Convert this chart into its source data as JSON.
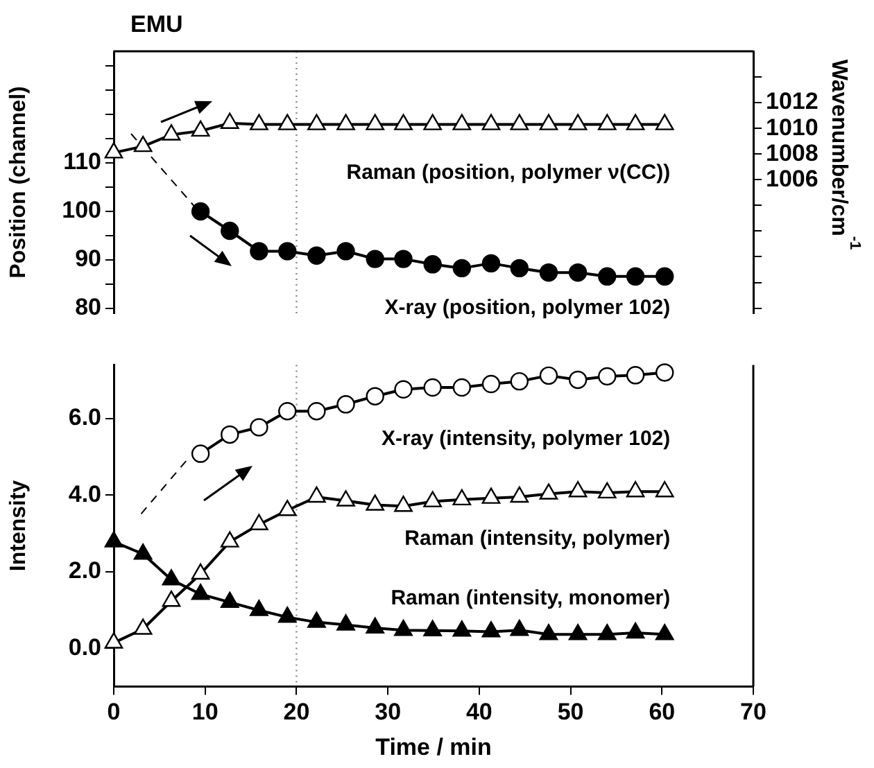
{
  "chart_data": [
    {
      "type": "line",
      "title": "EMU",
      "ylabel": "Position (channel)",
      "y2label": "Wavenumber/cm$^{-1}$",
      "x": [
        0,
        3.2,
        6.3,
        9.5,
        12.7,
        15.9,
        19.0,
        22.2,
        25.4,
        28.6,
        31.7,
        34.9,
        38.1,
        41.3,
        44.4,
        47.6,
        50.8,
        54.0,
        57.1,
        60.3
      ],
      "xlim": [
        0,
        70
      ],
      "ylim": [
        79,
        133
      ],
      "yticks": [
        80,
        {
          "value": 85,
          "label": null
        },
        90,
        {
          "value": 95,
          "label": null
        },
        100,
        {
          "value": 105,
          "label": null
        },
        110,
        {
          "value": 115,
          "label": null
        },
        {
          "value": 120,
          "label": null
        },
        {
          "value": 125,
          "label": null
        },
        {
          "value": 130,
          "label": null
        }
      ],
      "y2lim": [
        995.6,
        1016
      ],
      "y2ticks": [
        {
          "value": 996,
          "label": null
        },
        {
          "value": 998,
          "label": null
        },
        {
          "value": 1000,
          "label": null
        },
        {
          "value": 1002,
          "label": null
        },
        {
          "value": 1004,
          "label": null
        },
        1006,
        1008,
        1010,
        1012,
        {
          "value": 1014,
          "label": null
        }
      ],
      "tick_labels": "y",
      "legend": false,
      "grid": false,
      "ref_lines": [
        {
          "axis": "x",
          "value": 20,
          "color": "#888888",
          "line_style": "dotted"
        }
      ],
      "series": [
        {
          "name": "Raman (position, polymer ν(CC))",
          "color": "#000000",
          "axis": "y2",
          "marker": "triangle",
          "colors": [
            "#ffffff",
            "#ffffff",
            "#ffffff",
            "#ffffff",
            "#ffffff",
            "#ffffff",
            "#ffffff",
            "#ffffff",
            "#ffffff",
            "#ffffff",
            "#ffffff",
            "#ffffff",
            "#ffffff",
            "#ffffff",
            "#ffffff",
            "#ffffff",
            "#ffffff",
            "#ffffff",
            "#ffffff",
            "#ffffff"
          ],
          "values": [
            1008.1,
            1008.6,
            1009.5,
            1009.8,
            1010.4,
            1010.3,
            1010.3,
            1010.3,
            1010.3,
            1010.3,
            1010.3,
            1010.3,
            1010.3,
            1010.3,
            1010.3,
            1010.3,
            1010.3,
            1010.3,
            1010.3,
            1010.3
          ]
        },
        {
          "name": "X-ray (position, polymer 102)",
          "color": "#000000",
          "marker": "circle",
          "values": [
            null,
            null,
            null,
            100,
            96,
            91.8,
            91.8,
            90.9,
            91.8,
            90.2,
            90.2,
            89.1,
            88.3,
            89.3,
            88.3,
            87.4,
            87.4,
            86.6,
            86.6,
            86.6
          ]
        },
        {
          "color": "#000000",
          "x": [
            1.9,
            8.8
          ],
          "values": [
            116,
            101.1
          ],
          "marker": "none",
          "line_style": "dashed"
        }
      ]
    },
    {
      "type": "line",
      "xlabel": "Time / min",
      "ylabel": "Intensity",
      "x": [
        0,
        3.2,
        6.3,
        9.5,
        12.7,
        15.9,
        19.0,
        22.2,
        25.4,
        28.6,
        31.7,
        34.9,
        38.1,
        41.3,
        44.4,
        47.6,
        50.8,
        54.0,
        57.1,
        60.3
      ],
      "xlim": [
        0,
        70
      ],
      "xticks": [
        0,
        10,
        20,
        30,
        40,
        50,
        60,
        70
      ],
      "ylim": [
        -1,
        7.4
      ],
      "yticks": [
        {
          "value": 0,
          "label": "0.0"
        },
        {
          "value": 2,
          "label": "2.0"
        },
        {
          "value": 4,
          "label": "4.0"
        },
        {
          "value": 6,
          "label": "6.0"
        }
      ],
      "legend": false,
      "grid": false,
      "ref_lines": [
        {
          "axis": "x",
          "value": 20,
          "color": "#888888",
          "line_style": "dotted"
        }
      ],
      "series": [
        {
          "name": "X-ray (intensity, polymer 102)",
          "color": "#000000",
          "marker": "circle",
          "colors": [
            null,
            null,
            null,
            "#ffffff",
            "#ffffff",
            "#ffffff",
            "#ffffff",
            "#ffffff",
            "#ffffff",
            "#ffffff",
            "#ffffff",
            "#ffffff",
            "#ffffff",
            "#ffffff",
            "#ffffff",
            "#ffffff",
            "#ffffff",
            "#ffffff",
            "#ffffff",
            "#ffffff"
          ],
          "values": [
            null,
            null,
            null,
            5.08,
            5.58,
            5.77,
            6.19,
            6.19,
            6.37,
            6.58,
            6.76,
            6.81,
            6.81,
            6.9,
            6.97,
            7.12,
            7.01,
            7.1,
            7.13,
            7.2
          ]
        },
        {
          "name": "Raman (intensity, polymer)",
          "color": "#000000",
          "marker": "triangle",
          "colors": [
            "#ffffff",
            "#ffffff",
            "#ffffff",
            "#ffffff",
            "#ffffff",
            "#ffffff",
            "#ffffff",
            "#ffffff",
            "#ffffff",
            "#ffffff",
            "#ffffff",
            "#ffffff",
            "#ffffff",
            "#ffffff",
            "#ffffff",
            "#ffffff",
            "#ffffff",
            "#ffffff",
            "#ffffff",
            "#ffffff"
          ],
          "values": [
            0.14,
            0.5,
            1.23,
            1.94,
            2.78,
            3.23,
            3.6,
            3.95,
            3.85,
            3.74,
            3.71,
            3.83,
            3.88,
            3.92,
            3.95,
            4.03,
            4.09,
            4.06,
            4.09,
            4.09
          ]
        },
        {
          "name": "Raman (intensity, monomer)",
          "color": "#000000",
          "marker": "triangle",
          "values": [
            2.78,
            2.46,
            1.79,
            1.41,
            1.2,
            0.99,
            0.81,
            0.68,
            0.61,
            0.53,
            0.47,
            0.46,
            0.45,
            0.43,
            0.47,
            0.36,
            0.36,
            0.36,
            0.4,
            0.36
          ]
        },
        {
          "color": "#000000",
          "x": [
            3.0,
            8.2
          ],
          "values": [
            3.51,
            4.97
          ],
          "marker": "none",
          "line_style": "dashed"
        }
      ]
    }
  ]
}
